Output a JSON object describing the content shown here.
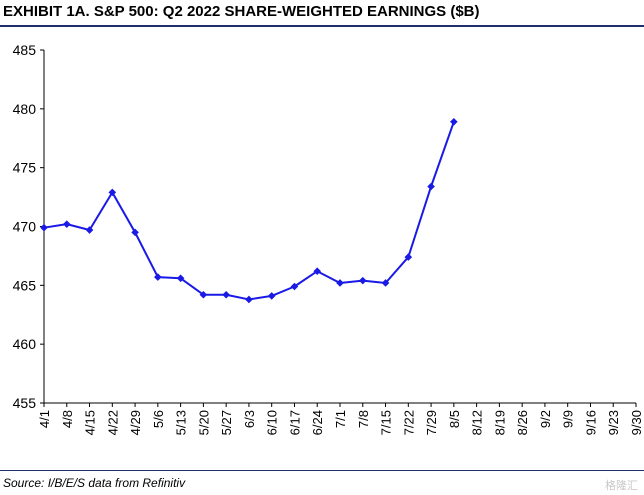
{
  "title": "EXHIBIT 1A.  S&P 500: Q2 2022 SHARE-WEIGHTED EARNINGS ($B)",
  "source": "Source: I/B/E/S data from Refinitiv",
  "watermark": "格隆汇",
  "colors": {
    "series": "#1a1ae6",
    "rule": "#1f2f6b",
    "axis": "#000000"
  },
  "chart_data": {
    "type": "line",
    "title": "EXHIBIT 1A.  S&P 500: Q2 2022 SHARE-WEIGHTED EARNINGS ($B)",
    "xlabel": "",
    "ylabel": "",
    "ylim": [
      455,
      485
    ],
    "yticks": [
      455,
      460,
      465,
      470,
      475,
      480,
      485
    ],
    "grid": false,
    "categories": [
      "4/1",
      "4/8",
      "4/15",
      "4/22",
      "4/29",
      "5/6",
      "5/13",
      "5/20",
      "5/27",
      "6/3",
      "6/10",
      "6/17",
      "6/24",
      "7/1",
      "7/8",
      "7/15",
      "7/22",
      "7/29",
      "8/5",
      "8/12",
      "8/19",
      "8/26",
      "9/2",
      "9/9",
      "9/16",
      "9/23",
      "9/30"
    ],
    "series": [
      {
        "values": [
          469.9,
          470.2,
          469.7,
          472.9,
          469.5,
          465.7,
          465.6,
          464.2,
          464.2,
          463.8,
          464.1,
          464.9,
          466.2,
          465.2,
          465.4,
          465.2,
          467.4,
          473.4,
          478.9,
          null,
          null,
          null,
          null,
          null,
          null,
          null,
          null
        ]
      }
    ]
  }
}
